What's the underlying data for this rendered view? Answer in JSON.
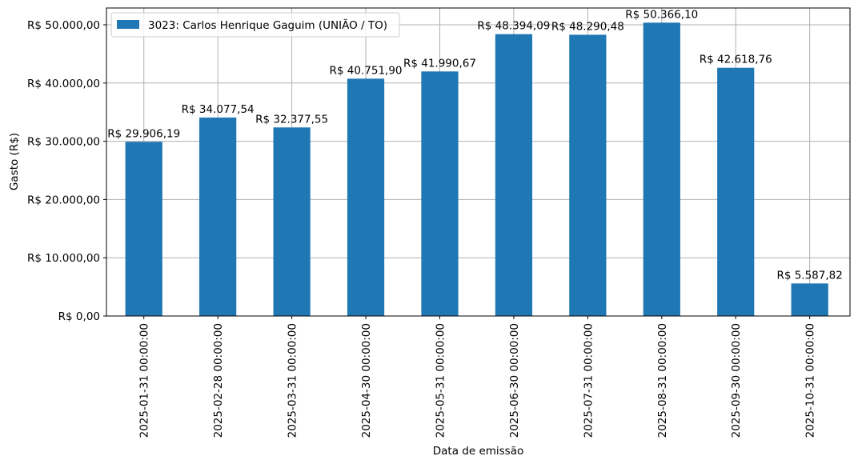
{
  "chart_data": {
    "type": "bar",
    "categories": [
      "2025-01-31 00:00:00",
      "2025-02-28 00:00:00",
      "2025-03-31 00:00:00",
      "2025-04-30 00:00:00",
      "2025-05-31 00:00:00",
      "2025-06-30 00:00:00",
      "2025-07-31 00:00:00",
      "2025-08-31 00:00:00",
      "2025-09-30 00:00:00",
      "2025-10-31 00:00:00"
    ],
    "series": [
      {
        "name": "3023: Carlos Henrique Gaguim (UNIÃO / TO)",
        "color": "#1f77b4",
        "values": [
          29906.19,
          34077.54,
          32377.55,
          40751.9,
          41990.67,
          48394.09,
          48290.48,
          50366.1,
          42618.76,
          5587.82
        ],
        "labels": [
          "R$ 29.906,19",
          "R$ 34.077,54",
          "R$ 32.377,55",
          "R$ 40.751,90",
          "R$ 41.990,67",
          "R$ 48.394,09",
          "R$ 48.290,48",
          "R$ 50.366,10",
          "R$ 42.618,76",
          "R$ 5.587,82"
        ]
      }
    ],
    "xlabel": "Data de emissão",
    "ylabel": "Gasto (R$)",
    "ylim": [
      0,
      50366.1
    ],
    "yticks": [
      0,
      10000,
      20000,
      30000,
      40000,
      50000
    ],
    "ytick_labels": [
      "R$ 0,00",
      "R$ 10.000,00",
      "R$ 20.000,00",
      "R$ 30.000,00",
      "R$ 40.000,00",
      "R$ 50.000,00"
    ],
    "grid": true,
    "legend_position": "top-left"
  }
}
